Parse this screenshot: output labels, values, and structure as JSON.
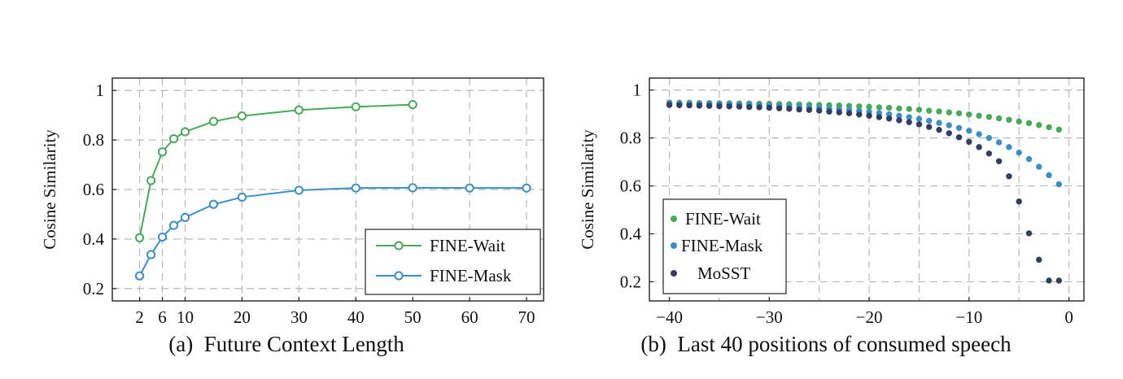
{
  "chart_data": [
    {
      "type": "line",
      "caption": "(a)  Future Context Length",
      "ylabel": "Cosine Similarity",
      "xlim": [
        -2.8,
        73
      ],
      "ylim": [
        0.15,
        1.05
      ],
      "xticks": [
        2,
        6,
        10,
        20,
        30,
        40,
        50,
        60,
        70
      ],
      "yticks": [
        0.2,
        0.4,
        0.6,
        0.8,
        1
      ],
      "ytick_labels": [
        "0.2",
        "0.4",
        "0.6",
        "0.8",
        "1"
      ],
      "xgrid": [
        2,
        6,
        10,
        20,
        30,
        40,
        50,
        60,
        70
      ],
      "grid": true,
      "legend_position": "bottom-right",
      "series": [
        {
          "name": "FINE-Wait",
          "color": "#4aa85a",
          "marker": "open-circle",
          "x": [
            2,
            4,
            6,
            8,
            10,
            15,
            20,
            30,
            40,
            50
          ],
          "y": [
            0.405,
            0.636,
            0.752,
            0.805,
            0.833,
            0.875,
            0.897,
            0.921,
            0.934,
            0.943
          ]
        },
        {
          "name": "FINE-Mask",
          "color": "#3c8fc4",
          "marker": "open-circle",
          "x": [
            2,
            4,
            6,
            8,
            10,
            15,
            20,
            30,
            40,
            50,
            60,
            70
          ],
          "y": [
            0.251,
            0.337,
            0.408,
            0.455,
            0.487,
            0.54,
            0.569,
            0.597,
            0.606,
            0.607,
            0.606,
            0.606
          ]
        }
      ]
    },
    {
      "type": "scatter",
      "caption": "(b)  Last 40 positions of consumed speech",
      "ylabel": "Cosine Similarity",
      "xlim": [
        -42,
        1.5
      ],
      "ylim": [
        0.12,
        1.05
      ],
      "xticks": [
        -40,
        -30,
        -20,
        -10,
        0
      ],
      "xtick_labels": [
        "−40",
        "−30",
        "−20",
        "−10",
        "0"
      ],
      "yticks": [
        0.2,
        0.4,
        0.6,
        0.8,
        1
      ],
      "ytick_labels": [
        "0.2",
        "0.4",
        "0.6",
        "0.8",
        "1"
      ],
      "xgrid": [
        -40,
        -35,
        -30,
        -25,
        -20,
        -15,
        -10,
        -5,
        0
      ],
      "grid": true,
      "legend_position": "bottom-left",
      "series": [
        {
          "name": "FINE-Wait",
          "color": "#4aa85a",
          "x": [
            -40,
            -39,
            -38,
            -37,
            -36,
            -35,
            -34,
            -33,
            -32,
            -31,
            -30,
            -29,
            -28,
            -27,
            -26,
            -25,
            -24,
            -23,
            -22,
            -21,
            -20,
            -19,
            -18,
            -17,
            -16,
            -15,
            -14,
            -13,
            -12,
            -11,
            -10,
            -9,
            -8,
            -7,
            -6,
            -5,
            -4,
            -3,
            -2,
            -1
          ],
          "y": [
            0.948,
            0.947,
            0.947,
            0.946,
            0.946,
            0.945,
            0.945,
            0.944,
            0.944,
            0.943,
            0.943,
            0.942,
            0.941,
            0.94,
            0.939,
            0.938,
            0.937,
            0.936,
            0.934,
            0.932,
            0.93,
            0.928,
            0.926,
            0.923,
            0.921,
            0.918,
            0.914,
            0.911,
            0.907,
            0.903,
            0.898,
            0.893,
            0.888,
            0.882,
            0.876,
            0.869,
            0.862,
            0.854,
            0.845,
            0.835
          ]
        },
        {
          "name": "FINE-Mask",
          "color": "#3c8fc4",
          "x": [
            -40,
            -39,
            -38,
            -37,
            -36,
            -35,
            -34,
            -33,
            -32,
            -31,
            -30,
            -29,
            -28,
            -27,
            -26,
            -25,
            -24,
            -23,
            -22,
            -21,
            -20,
            -19,
            -18,
            -17,
            -16,
            -15,
            -14,
            -13,
            -12,
            -11,
            -10,
            -9,
            -8,
            -7,
            -6,
            -5,
            -4,
            -3,
            -2,
            -1
          ],
          "y": [
            0.945,
            0.944,
            0.943,
            0.943,
            0.942,
            0.941,
            0.94,
            0.939,
            0.938,
            0.937,
            0.936,
            0.934,
            0.932,
            0.93,
            0.928,
            0.926,
            0.923,
            0.92,
            0.917,
            0.913,
            0.909,
            0.904,
            0.899,
            0.893,
            0.887,
            0.88,
            0.872,
            0.863,
            0.853,
            0.842,
            0.83,
            0.816,
            0.8,
            0.782,
            0.762,
            0.739,
            0.712,
            0.68,
            0.645,
            0.607
          ]
        },
        {
          "name": "MoSST",
          "color": "#333e63",
          "x": [
            -40,
            -39,
            -38,
            -37,
            -36,
            -35,
            -34,
            -33,
            -32,
            -31,
            -30,
            -29,
            -28,
            -27,
            -26,
            -25,
            -24,
            -23,
            -22,
            -21,
            -20,
            -19,
            -18,
            -17,
            -16,
            -15,
            -14,
            -13,
            -12,
            -11,
            -10,
            -9,
            -8,
            -7,
            -6,
            -5,
            -4,
            -3,
            -2,
            -1
          ],
          "y": [
            0.938,
            0.937,
            0.936,
            0.935,
            0.934,
            0.933,
            0.932,
            0.931,
            0.929,
            0.928,
            0.926,
            0.924,
            0.922,
            0.919,
            0.917,
            0.914,
            0.91,
            0.907,
            0.903,
            0.898,
            0.893,
            0.887,
            0.881,
            0.874,
            0.866,
            0.857,
            0.846,
            0.834,
            0.82,
            0.803,
            0.784,
            0.762,
            0.735,
            0.703,
            0.64,
            0.535,
            0.402,
            0.292,
            0.205,
            0.205
          ]
        }
      ]
    }
  ]
}
